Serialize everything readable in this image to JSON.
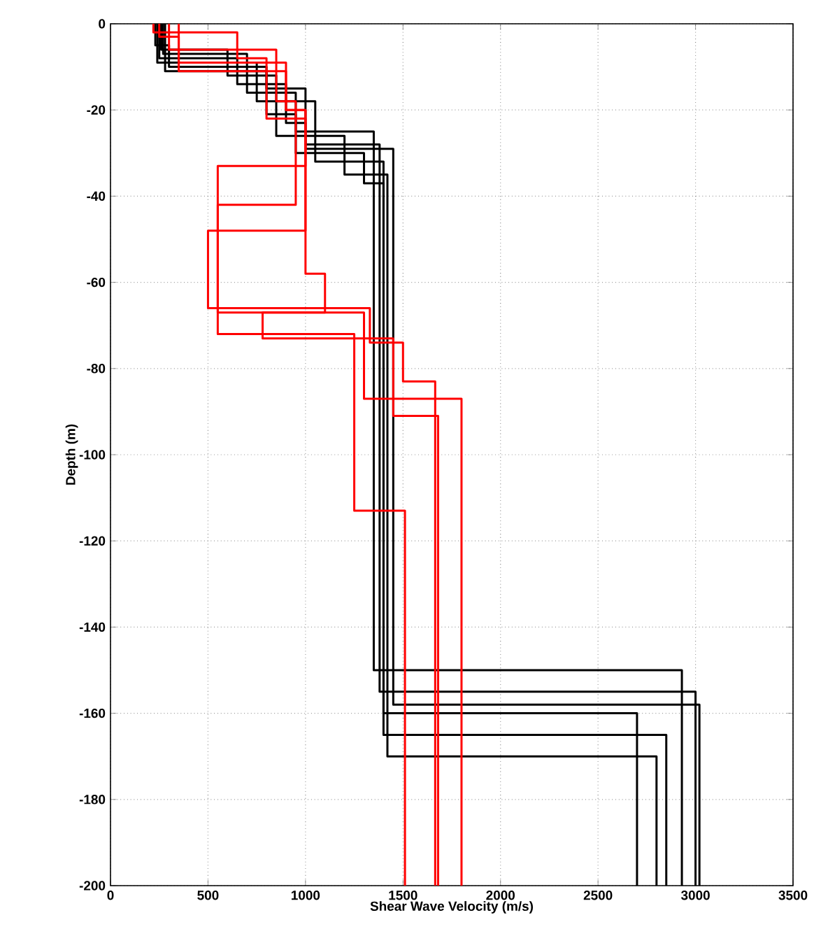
{
  "chart_data": {
    "type": "line",
    "xlabel": "Shear Wave Velocity (m/s)",
    "ylabel": "Depth (m)",
    "xlim": [
      0,
      3500
    ],
    "ylim": [
      -200,
      0
    ],
    "xticks": [
      0,
      500,
      1000,
      1500,
      2000,
      2500,
      3000,
      3500
    ],
    "yticks": [
      -200,
      -180,
      -160,
      -140,
      -120,
      -100,
      -80,
      -60,
      -40,
      -20,
      0
    ],
    "grid": true,
    "series": [
      {
        "color": "#000000",
        "x": [
          230,
          230,
          300,
          300,
          800,
          800,
          950,
          950,
          1350,
          1350,
          2930,
          2930
        ],
        "values": [
          0,
          -5,
          -5,
          -10,
          -10,
          -21,
          -21,
          -25,
          -25,
          -150,
          -150,
          -200
        ]
      },
      {
        "color": "#000000",
        "x": [
          250,
          250,
          650,
          650,
          900,
          900,
          1000,
          1000,
          1380,
          1380,
          3000,
          3000
        ],
        "values": [
          0,
          -8,
          -8,
          -14,
          -14,
          -23,
          -23,
          -28,
          -28,
          -155,
          -155,
          -200
        ]
      },
      {
        "color": "#000000",
        "x": [
          270,
          270,
          700,
          700,
          950,
          950,
          1300,
          1300,
          1400,
          1400,
          2700,
          2700
        ],
        "values": [
          0,
          -7,
          -7,
          -16,
          -16,
          -30,
          -30,
          -37,
          -37,
          -160,
          -160,
          -200
        ]
      },
      {
        "color": "#000000",
        "x": [
          240,
          240,
          750,
          750,
          1050,
          1050,
          1400,
          1400,
          2850,
          2850
        ],
        "values": [
          0,
          -9,
          -9,
          -18,
          -18,
          -32,
          -32,
          -165,
          -165,
          -200
        ]
      },
      {
        "color": "#000000",
        "x": [
          260,
          260,
          600,
          600,
          850,
          850,
          1200,
          1200,
          1420,
          1420,
          2800,
          2800
        ],
        "values": [
          0,
          -6,
          -6,
          -12,
          -12,
          -26,
          -26,
          -35,
          -35,
          -170,
          -170,
          -200
        ]
      },
      {
        "color": "#000000",
        "x": [
          280,
          280,
          800,
          800,
          1000,
          1000,
          1450,
          1450,
          3020,
          3020
        ],
        "values": [
          0,
          -11,
          -11,
          -15,
          -15,
          -29,
          -29,
          -158,
          -158,
          -200
        ]
      },
      {
        "color": "#ff0000",
        "x": [
          250,
          250,
          350,
          350,
          900,
          900,
          1000,
          1000,
          550,
          550,
          1250,
          1250,
          1510,
          1510
        ],
        "values": [
          0,
          -3,
          -3,
          -11,
          -11,
          -20,
          -20,
          -33,
          -33,
          -72,
          -72,
          -113,
          -113,
          -200
        ]
      },
      {
        "color": "#ff0000",
        "x": [
          300,
          300,
          850,
          850,
          950,
          950,
          550,
          550,
          1300,
          1300,
          1800,
          1800
        ],
        "values": [
          0,
          -6,
          -6,
          -18,
          -18,
          -42,
          -42,
          -67,
          -67,
          -87,
          -87,
          -200
        ]
      },
      {
        "color": "#ff0000",
        "x": [
          220,
          220,
          650,
          650,
          800,
          800,
          1000,
          1000,
          500,
          500,
          1330,
          1330,
          1500,
          1500,
          1665,
          1665
        ],
        "values": [
          0,
          -2,
          -2,
          -8,
          -8,
          -22,
          -22,
          -48,
          -48,
          -66,
          -66,
          -74,
          -74,
          -83,
          -83,
          -200
        ]
      },
      {
        "color": "#ff0000",
        "x": [
          350,
          350,
          900,
          900,
          1000,
          1000,
          1100,
          1100,
          780,
          780,
          1450,
          1450,
          1680,
          1680
        ],
        "values": [
          0,
          -9,
          -9,
          -20,
          -20,
          -58,
          -58,
          -67,
          -67,
          -73,
          -73,
          -91,
          -91,
          -200
        ]
      }
    ]
  }
}
